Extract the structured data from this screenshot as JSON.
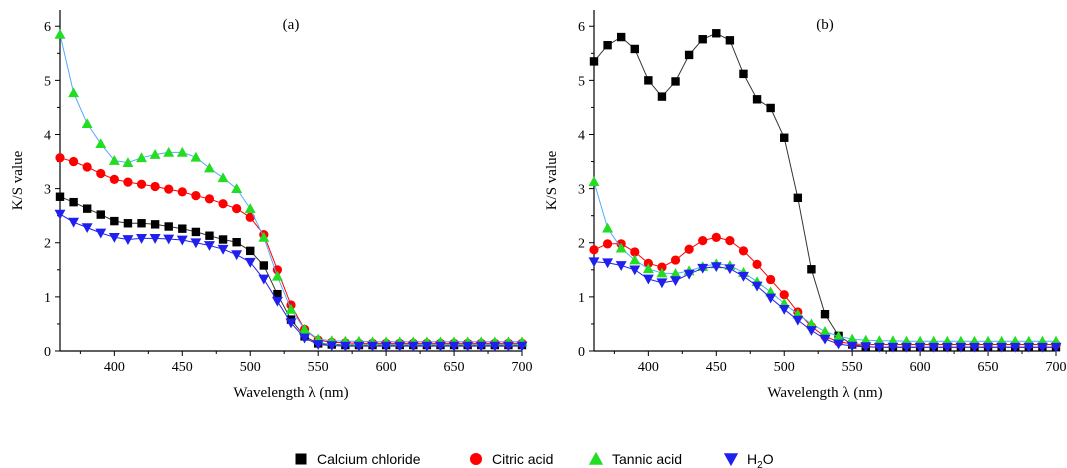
{
  "chart_data": [
    {
      "type": "line",
      "panel_label": "(a)",
      "xlabel": "Wavelength λ (nm)",
      "ylabel": "K/S value",
      "xlim": [
        360,
        700
      ],
      "ylim": [
        0,
        6.3
      ],
      "xticks": [
        400,
        450,
        500,
        550,
        600,
        650,
        700
      ],
      "yticks": [
        0,
        1,
        2,
        3,
        4,
        5,
        6
      ],
      "x": [
        360,
        370,
        380,
        390,
        400,
        410,
        420,
        430,
        440,
        450,
        460,
        470,
        480,
        490,
        500,
        510,
        520,
        530,
        540,
        550,
        560,
        570,
        580,
        590,
        600,
        610,
        620,
        630,
        640,
        650,
        660,
        670,
        680,
        690,
        700
      ],
      "series": [
        {
          "name": "Calcium chloride",
          "color": "#000000",
          "marker": "square",
          "values": [
            2.85,
            2.75,
            2.63,
            2.52,
            2.4,
            2.36,
            2.36,
            2.34,
            2.3,
            2.26,
            2.2,
            2.13,
            2.06,
            2.01,
            1.85,
            1.58,
            1.05,
            0.58,
            0.27,
            0.14,
            0.12,
            0.11,
            0.11,
            0.11,
            0.11,
            0.11,
            0.11,
            0.11,
            0.11,
            0.11,
            0.11,
            0.11,
            0.11,
            0.11,
            0.11
          ]
        },
        {
          "name": "Citric acid",
          "color": "#ff0000",
          "marker": "circle",
          "values": [
            3.57,
            3.5,
            3.4,
            3.28,
            3.17,
            3.12,
            3.08,
            3.04,
            2.99,
            2.94,
            2.87,
            2.81,
            2.72,
            2.63,
            2.47,
            2.15,
            1.5,
            0.85,
            0.4,
            0.2,
            0.16,
            0.15,
            0.14,
            0.14,
            0.14,
            0.14,
            0.14,
            0.14,
            0.14,
            0.14,
            0.14,
            0.14,
            0.14,
            0.14,
            0.14
          ]
        },
        {
          "name": "Tannic acid",
          "color": "#22dd22",
          "marker": "triangle-up",
          "values": [
            5.85,
            4.77,
            4.2,
            3.83,
            3.52,
            3.48,
            3.57,
            3.63,
            3.67,
            3.67,
            3.58,
            3.38,
            3.2,
            3.0,
            2.63,
            2.1,
            1.38,
            0.77,
            0.4,
            0.22,
            0.19,
            0.18,
            0.18,
            0.17,
            0.17,
            0.17,
            0.17,
            0.17,
            0.17,
            0.17,
            0.17,
            0.17,
            0.17,
            0.17,
            0.17
          ]
        },
        {
          "name": "H2O",
          "color": "#2020ee",
          "marker": "triangle-down",
          "values": [
            2.53,
            2.38,
            2.28,
            2.18,
            2.1,
            2.06,
            2.08,
            2.08,
            2.07,
            2.05,
            2.0,
            1.95,
            1.88,
            1.78,
            1.64,
            1.33,
            0.92,
            0.52,
            0.24,
            0.12,
            0.1,
            0.09,
            0.09,
            0.09,
            0.09,
            0.09,
            0.09,
            0.09,
            0.09,
            0.09,
            0.09,
            0.09,
            0.09,
            0.09,
            0.09
          ]
        }
      ]
    },
    {
      "type": "line",
      "panel_label": "(b)",
      "xlabel": "Wavelength λ (nm)",
      "ylabel": "K/S value",
      "xlim": [
        360,
        700
      ],
      "ylim": [
        0,
        6.3
      ],
      "xticks": [
        400,
        450,
        500,
        550,
        600,
        650,
        700
      ],
      "yticks": [
        0,
        1,
        2,
        3,
        4,
        5,
        6
      ],
      "x": [
        360,
        370,
        380,
        390,
        400,
        410,
        420,
        430,
        440,
        450,
        460,
        470,
        480,
        490,
        500,
        510,
        520,
        530,
        540,
        550,
        560,
        570,
        580,
        590,
        600,
        610,
        620,
        630,
        640,
        650,
        660,
        670,
        680,
        690,
        700
      ],
      "series": [
        {
          "name": "Calcium chloride",
          "color": "#000000",
          "marker": "square",
          "values": [
            5.35,
            5.65,
            5.8,
            5.58,
            5.0,
            4.7,
            4.98,
            5.47,
            5.76,
            5.87,
            5.74,
            5.12,
            4.65,
            4.49,
            3.94,
            2.83,
            1.51,
            0.68,
            0.28,
            0.12,
            0.08,
            0.07,
            0.07,
            0.07,
            0.07,
            0.07,
            0.07,
            0.07,
            0.07,
            0.07,
            0.07,
            0.07,
            0.07,
            0.07,
            0.07
          ]
        },
        {
          "name": "Citric acid",
          "color": "#ff0000",
          "marker": "circle",
          "values": [
            1.87,
            1.98,
            1.98,
            1.83,
            1.62,
            1.55,
            1.68,
            1.88,
            2.04,
            2.1,
            2.04,
            1.85,
            1.6,
            1.32,
            1.04,
            0.72,
            0.45,
            0.27,
            0.17,
            0.13,
            0.12,
            0.12,
            0.12,
            0.12,
            0.12,
            0.12,
            0.12,
            0.12,
            0.12,
            0.12,
            0.12,
            0.12,
            0.12,
            0.12,
            0.12
          ]
        },
        {
          "name": "Tannic acid",
          "color": "#22dd22",
          "marker": "triangle-up",
          "values": [
            3.13,
            2.27,
            1.9,
            1.68,
            1.52,
            1.44,
            1.43,
            1.48,
            1.56,
            1.61,
            1.58,
            1.45,
            1.28,
            1.09,
            0.88,
            0.68,
            0.5,
            0.36,
            0.27,
            0.22,
            0.2,
            0.19,
            0.19,
            0.18,
            0.18,
            0.18,
            0.18,
            0.18,
            0.18,
            0.18,
            0.18,
            0.18,
            0.18,
            0.18,
            0.18
          ]
        },
        {
          "name": "H2O",
          "color": "#2020ee",
          "marker": "triangle-down",
          "values": [
            1.65,
            1.63,
            1.58,
            1.5,
            1.33,
            1.26,
            1.3,
            1.42,
            1.53,
            1.56,
            1.52,
            1.38,
            1.2,
            0.98,
            0.77,
            0.57,
            0.38,
            0.22,
            0.13,
            0.09,
            0.08,
            0.07,
            0.07,
            0.07,
            0.07,
            0.07,
            0.07,
            0.07,
            0.07,
            0.07,
            0.07,
            0.07,
            0.07,
            0.07,
            0.07
          ]
        }
      ]
    }
  ],
  "legend": {
    "placement": "bottom-center",
    "items": [
      {
        "label": "Calcium chloride",
        "marker": "square",
        "color": "#000000"
      },
      {
        "label": "Citric acid",
        "marker": "circle",
        "color": "#ff0000"
      },
      {
        "label": "Tannic acid",
        "marker": "triangle-up",
        "color": "#22dd22"
      },
      {
        "label_main": "H",
        "label_sub": "2",
        "label_tail": "O",
        "marker": "triangle-down",
        "color": "#2020ee"
      }
    ]
  }
}
